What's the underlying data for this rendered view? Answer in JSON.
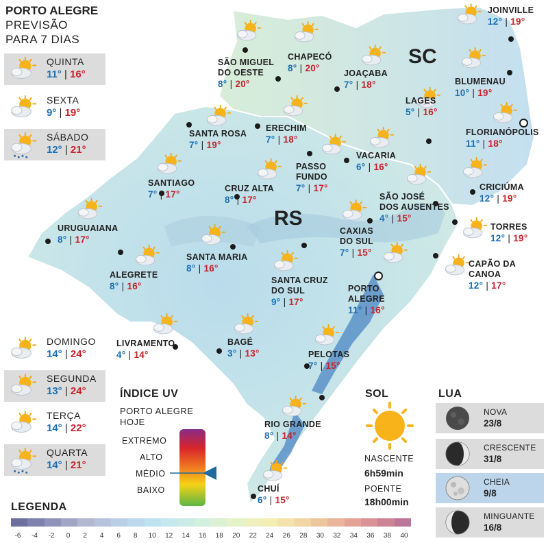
{
  "header": {
    "title": "PORTO ALEGRE",
    "subtitle_line1": "PREVISÃO",
    "subtitle_line2": "PARA 7 DIAS"
  },
  "forecast": [
    {
      "day": "QUINTA",
      "min": "11°",
      "max": "16°",
      "icon": "partly-cloudy-icon"
    },
    {
      "day": "SEXTA",
      "min": "9°",
      "max": "19°",
      "icon": "partly-cloudy-icon"
    },
    {
      "day": "SÁBADO",
      "min": "12°",
      "max": "21°",
      "icon": "rain-cloud-sun-icon"
    },
    {
      "day": "DOMINGO",
      "min": "14°",
      "max": "24°",
      "icon": "partly-cloudy-icon"
    },
    {
      "day": "SEGUNDA",
      "min": "13°",
      "max": "24°",
      "icon": "partly-cloudy-icon"
    },
    {
      "day": "TERÇA",
      "min": "14°",
      "max": "22°",
      "icon": "partly-cloudy-icon"
    },
    {
      "day": "QUARTA",
      "min": "14°",
      "max": "21°",
      "icon": "rain-cloud-sun-icon"
    }
  ],
  "states": {
    "rs": "RS",
    "sc": "SC"
  },
  "cities": [
    {
      "l1": "JOINVILLE",
      "l2": "",
      "min": "12°",
      "max": "19°"
    },
    {
      "l1": "SÃO MIGUEL",
      "l2": "DO OESTE",
      "min": "8°",
      "max": "20°"
    },
    {
      "l1": "CHAPECÓ",
      "l2": "",
      "min": "8°",
      "max": "20°"
    },
    {
      "l1": "JOAÇABA",
      "l2": "",
      "min": "7°",
      "max": "18°"
    },
    {
      "l1": "BLUMENAU",
      "l2": "",
      "min": "10°",
      "max": "19°"
    },
    {
      "l1": "LAGES",
      "l2": "",
      "min": "5°",
      "max": "16°"
    },
    {
      "l1": "FLORIANÓPOLIS",
      "l2": "",
      "min": "11°",
      "max": "18°"
    },
    {
      "l1": "SANTA ROSA",
      "l2": "",
      "min": "7°",
      "max": "19°"
    },
    {
      "l1": "ERECHIM",
      "l2": "",
      "min": "7°",
      "max": "18°"
    },
    {
      "l1": "VACARIA",
      "l2": "",
      "min": "6°",
      "max": "16°"
    },
    {
      "l1": "PASSO",
      "l2": "FUNDO",
      "min": "7°",
      "max": "17°"
    },
    {
      "l1": "SANTIAGO",
      "l2": "",
      "min": "7°",
      "max": "17°"
    },
    {
      "l1": "CRUZ ALTA",
      "l2": "",
      "min": "8°",
      "max": "17°"
    },
    {
      "l1": "SÃO JOSÉ",
      "l2": "DOS AUSENTES",
      "min": "4°",
      "max": "15°"
    },
    {
      "l1": "CRICIÚMA",
      "l2": "",
      "min": "12°",
      "max": "19°"
    },
    {
      "l1": "URUGUAIANA",
      "l2": "",
      "min": "8°",
      "max": "17°"
    },
    {
      "l1": "CAXIAS",
      "l2": "DO SUL",
      "min": "7°",
      "max": "15°"
    },
    {
      "l1": "TORRES",
      "l2": "",
      "min": "12°",
      "max": "19°"
    },
    {
      "l1": "SANTA MARIA",
      "l2": "",
      "min": "8°",
      "max": "16°"
    },
    {
      "l1": "ALEGRETE",
      "l2": "",
      "min": "8°",
      "max": "16°"
    },
    {
      "l1": "SANTA CRUZ",
      "l2": "DO SUL",
      "min": "9°",
      "max": "17°"
    },
    {
      "l1": "CAPÃO DA",
      "l2": "CANOA",
      "min": "12°",
      "max": "17°"
    },
    {
      "l1": "PORTO",
      "l2": "ALEGRE",
      "min": "11°",
      "max": "16°"
    },
    {
      "l1": "LIVRAMENTO",
      "l2": "",
      "min": "4°",
      "max": "14°"
    },
    {
      "l1": "BAGÉ",
      "l2": "",
      "min": "3°",
      "max": "13°"
    },
    {
      "l1": "PELOTAS",
      "l2": "",
      "min": "7°",
      "max": "15°"
    },
    {
      "l1": "RIO GRANDE",
      "l2": "",
      "min": "8°",
      "max": "14°"
    },
    {
      "l1": "CHUÍ",
      "l2": "",
      "min": "6°",
      "max": "15°"
    }
  ],
  "uv": {
    "title": "ÍNDICE UV",
    "sub1": "PORTO ALEGRE",
    "sub2": "HOJE",
    "levels": [
      "EXTREMO",
      "ALTO",
      "MÉDIO",
      "BAIXO"
    ],
    "current": "MÉDIO"
  },
  "sun": {
    "title": "SOL",
    "rise_label": "NASCENTE",
    "rise": "6h59min",
    "set_label": "POENTE",
    "set": "18h00min"
  },
  "moon": {
    "title": "LUA",
    "phases": [
      {
        "name": "NOVA",
        "date": "23/8"
      },
      {
        "name": "CRESCENTE",
        "date": "31/8"
      },
      {
        "name": "CHEIA",
        "date": "9/8"
      },
      {
        "name": "MINGUANTE",
        "date": "16/8"
      }
    ]
  },
  "legend": {
    "title": "LEGENDA",
    "ticks": [
      "-6",
      "-4",
      "-2",
      "0",
      "2",
      "4",
      "6",
      "8",
      "10",
      "12",
      "14",
      "16",
      "18",
      "20",
      "22",
      "24",
      "26",
      "28",
      "30",
      "32",
      "34",
      "36",
      "38",
      "40"
    ],
    "colors": [
      "#6c6f9f",
      "#7e82ad",
      "#9093b9",
      "#a2a5c5",
      "#b4b7d1",
      "#b7c3dc",
      "#bacee6",
      "#bcd9ee",
      "#bfe2f1",
      "#c4e8ee",
      "#cbece6",
      "#d3efdd",
      "#dcf1d3",
      "#e6f2c8",
      "#eef1be",
      "#f4edb4",
      "#f3e2ab",
      "#f1d5a4",
      "#eec69e",
      "#eab59a",
      "#e3a497",
      "#d99396",
      "#cc8396",
      "#bc7698"
    ]
  }
}
